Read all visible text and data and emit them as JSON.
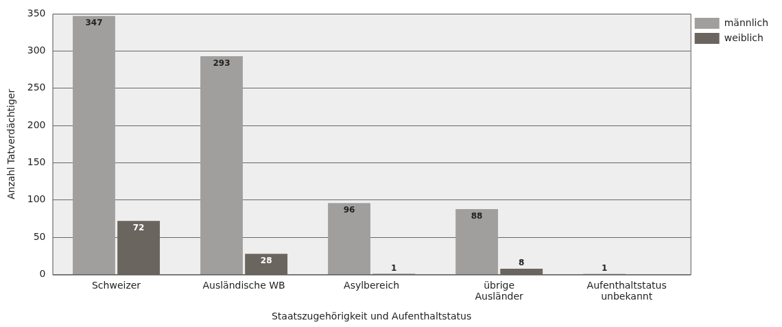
{
  "chart_data": {
    "type": "bar",
    "xlabel": "Staatszugehörigkeit und Aufenthaltstatus",
    "ylabel": "Anzahl Tatverdächtiger",
    "categories": [
      "Schweizer",
      "Ausländische WB",
      "Asylbereich",
      "übrige\nAusländer",
      "Aufenthaltstatus\nunbekannt"
    ],
    "series": [
      {
        "name": "männlich",
        "color": "#a09f9e",
        "values": [
          347,
          293,
          96,
          88,
          1
        ]
      },
      {
        "name": "weiblich",
        "color": "#6b6560",
        "values": [
          72,
          28,
          1,
          8,
          null
        ]
      }
    ],
    "ylim": [
      0,
      350
    ],
    "yticks": [
      0,
      50,
      100,
      150,
      200,
      250,
      300,
      350
    ],
    "grid": "y",
    "legend": "top right",
    "data_labels": true
  }
}
